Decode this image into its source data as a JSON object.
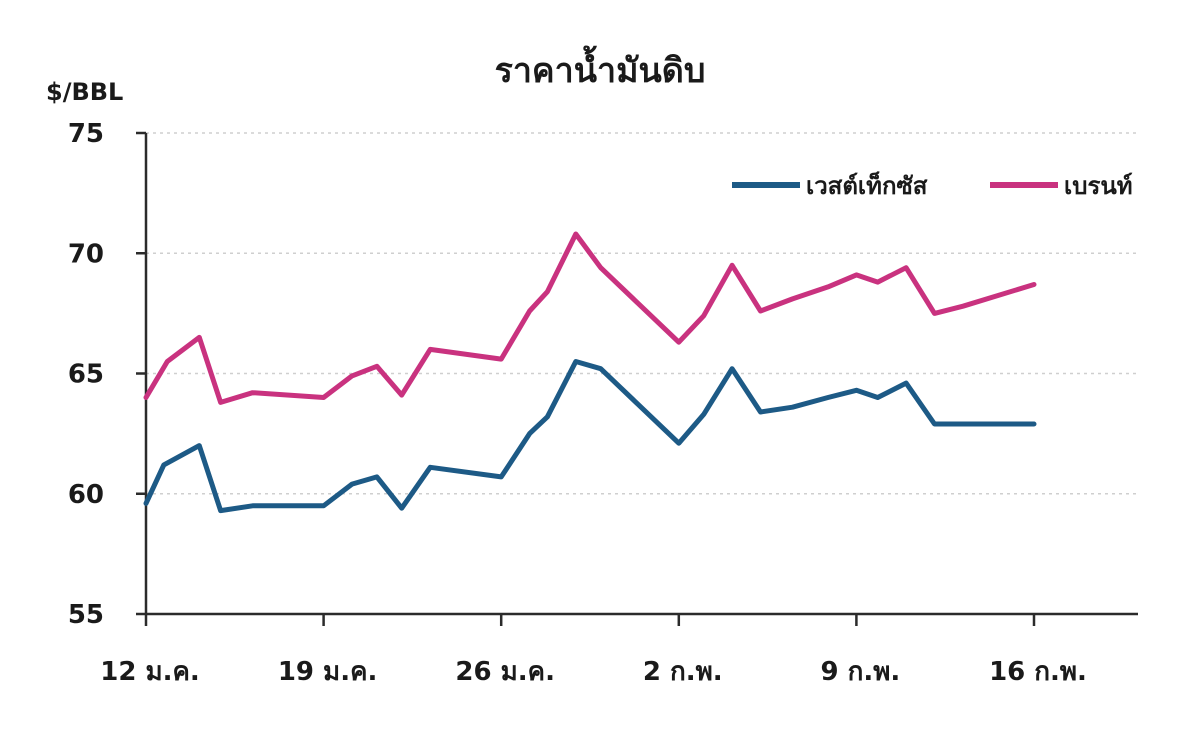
{
  "chart_data": {
    "type": "line",
    "title": "ราคาน้ำมันดิบ",
    "ylabel": "$/BBL",
    "xlabel": "",
    "ylim": [
      55,
      75
    ],
    "yticks": [
      55,
      60,
      65,
      70,
      75
    ],
    "grid": true,
    "legend_position": "top-right",
    "x_tick_labels": [
      {
        "label": "12 ม.ค.",
        "index": 0
      },
      {
        "label": "19 ม.ค.",
        "index": 5
      },
      {
        "label": "26 ม.ค.",
        "index": 10
      },
      {
        "label": "2 ก.พ.",
        "index": 15
      },
      {
        "label": "9 ก.พ.",
        "index": 20
      },
      {
        "label": "16 ก.พ.",
        "index": 25
      }
    ],
    "x": [
      0,
      0.5,
      1,
      1.5,
      2,
      3,
      4,
      4.5,
      5,
      5.5,
      6,
      6.5,
      7,
      7.5,
      8,
      8.5,
      9,
      10,
      10.5,
      11,
      11.5,
      12,
      12.5,
      13,
      14,
      15,
      16,
      17,
      18,
      19,
      20,
      21,
      22,
      23,
      25
    ],
    "series": [
      {
        "name": "เวสต์เท็กซัส",
        "color": "#1d5a86",
        "points": [
          [
            0,
            59.6
          ],
          [
            0.5,
            61.2
          ],
          [
            1.5,
            62.0
          ],
          [
            2.1,
            59.3
          ],
          [
            3,
            59.5
          ],
          [
            5,
            59.5
          ],
          [
            5.8,
            60.4
          ],
          [
            6.5,
            60.7
          ],
          [
            7.2,
            59.4
          ],
          [
            8,
            61.1
          ],
          [
            10,
            60.7
          ],
          [
            10.8,
            62.5
          ],
          [
            11.3,
            63.2
          ],
          [
            12.1,
            65.5
          ],
          [
            12.8,
            65.2
          ],
          [
            15,
            62.1
          ],
          [
            15.7,
            63.3
          ],
          [
            16.5,
            65.2
          ],
          [
            17.3,
            63.4
          ],
          [
            18.2,
            63.6
          ],
          [
            19.2,
            64.0
          ],
          [
            20,
            64.3
          ],
          [
            20.6,
            64.0
          ],
          [
            21.4,
            64.6
          ],
          [
            22.2,
            62.9
          ],
          [
            23,
            62.9
          ],
          [
            25,
            62.9
          ]
        ]
      },
      {
        "name": "เบรนท์",
        "color": "#c9327f",
        "points": [
          [
            0,
            64.0
          ],
          [
            0.6,
            65.5
          ],
          [
            1.5,
            66.5
          ],
          [
            2.1,
            63.8
          ],
          [
            3,
            64.2
          ],
          [
            5,
            64.0
          ],
          [
            5.8,
            64.9
          ],
          [
            6.5,
            65.3
          ],
          [
            7.2,
            64.1
          ],
          [
            8,
            66.0
          ],
          [
            10,
            65.6
          ],
          [
            10.8,
            67.6
          ],
          [
            11.3,
            68.4
          ],
          [
            12.1,
            70.8
          ],
          [
            12.8,
            69.4
          ],
          [
            15,
            66.3
          ],
          [
            15.7,
            67.4
          ],
          [
            16.5,
            69.5
          ],
          [
            17.3,
            67.6
          ],
          [
            18.2,
            68.1
          ],
          [
            19.2,
            68.6
          ],
          [
            20,
            69.1
          ],
          [
            20.6,
            68.8
          ],
          [
            21.4,
            69.4
          ],
          [
            22.2,
            67.5
          ],
          [
            23,
            67.8
          ],
          [
            25,
            68.7
          ]
        ]
      }
    ]
  }
}
